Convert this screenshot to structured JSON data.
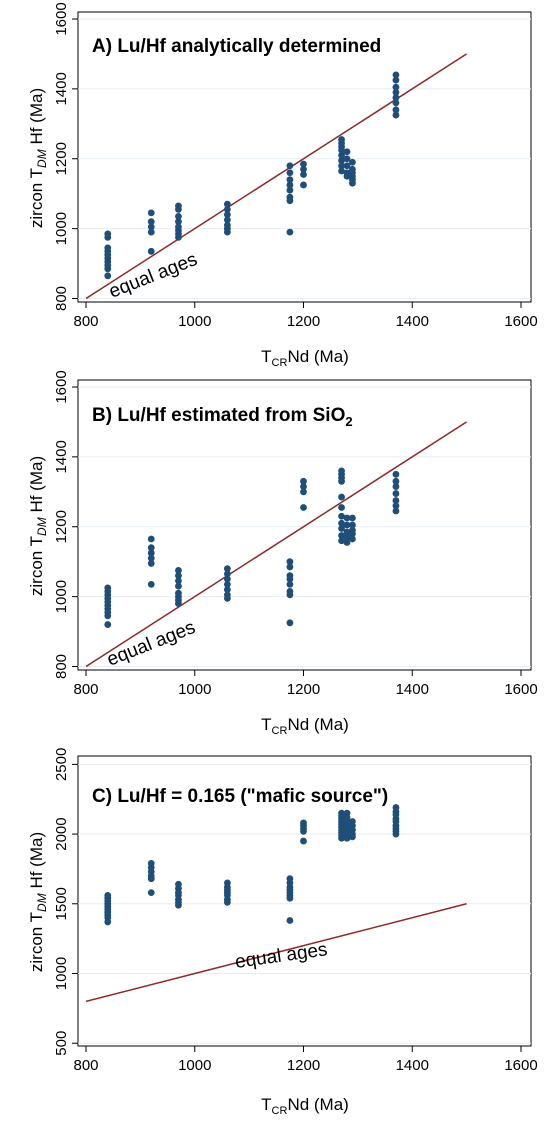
{
  "figure": {
    "axis_common": {
      "xlabel_main": "T",
      "xlabel_sub": "CR",
      "xlabel_rest": "Nd (Ma)",
      "ylabel_main": "zircon T",
      "ylabel_sub": "DM",
      "ylabel_rest": " Hf (Ma)"
    }
  },
  "chart_data": [
    {
      "type": "scatter",
      "panel": "A",
      "title": "A) Lu/Hf analytically determined",
      "xlabel": "TCRNd (Ma)",
      "ylabel": "zircon TDM Hf (Ma)",
      "xlim": [
        800,
        1600
      ],
      "ylim": [
        790,
        1620
      ],
      "xticks": [
        800,
        1000,
        1200,
        1400,
        1600
      ],
      "yticks": [
        800,
        1000,
        1200,
        1400,
        1600
      ],
      "grid": "horizontal",
      "point_color": "#1f4e79",
      "line_color": "#8b2a2a",
      "reference_line": {
        "name": "equal ages",
        "x": [
          800,
          1500
        ],
        "y": [
          800,
          1500
        ]
      },
      "annotation": "equal ages",
      "series": [
        {
          "points": [
            [
              840,
              985
            ],
            [
              840,
              975
            ],
            [
              840,
              945
            ],
            [
              840,
              935
            ],
            [
              840,
              925
            ],
            [
              840,
              915
            ],
            [
              840,
              905
            ],
            [
              840,
              895
            ],
            [
              840,
              885
            ],
            [
              840,
              865
            ],
            [
              920,
              1045
            ],
            [
              920,
              1020
            ],
            [
              920,
              1005
            ],
            [
              920,
              990
            ],
            [
              920,
              935
            ],
            [
              970,
              1065
            ],
            [
              970,
              1055
            ],
            [
              970,
              1035
            ],
            [
              970,
              1020
            ],
            [
              970,
              1005
            ],
            [
              970,
              995
            ],
            [
              970,
              985
            ],
            [
              970,
              975
            ],
            [
              1060,
              1070
            ],
            [
              1060,
              1055
            ],
            [
              1060,
              1040
            ],
            [
              1060,
              1025
            ],
            [
              1060,
              1010
            ],
            [
              1060,
              1000
            ],
            [
              1060,
              990
            ],
            [
              1175,
              1180
            ],
            [
              1175,
              1160
            ],
            [
              1175,
              1140
            ],
            [
              1175,
              1125
            ],
            [
              1175,
              1110
            ],
            [
              1175,
              1090
            ],
            [
              1175,
              1080
            ],
            [
              1175,
              990
            ],
            [
              1200,
              1185
            ],
            [
              1200,
              1170
            ],
            [
              1200,
              1155
            ],
            [
              1200,
              1125
            ],
            [
              1270,
              1255
            ],
            [
              1270,
              1245
            ],
            [
              1270,
              1235
            ],
            [
              1270,
              1225
            ],
            [
              1270,
              1210
            ],
            [
              1270,
              1195
            ],
            [
              1270,
              1180
            ],
            [
              1270,
              1165
            ],
            [
              1280,
              1220
            ],
            [
              1280,
              1200
            ],
            [
              1280,
              1180
            ],
            [
              1280,
              1160
            ],
            [
              1280,
              1150
            ],
            [
              1290,
              1190
            ],
            [
              1290,
              1170
            ],
            [
              1290,
              1160
            ],
            [
              1290,
              1150
            ],
            [
              1290,
              1140
            ],
            [
              1290,
              1130
            ],
            [
              1370,
              1440
            ],
            [
              1370,
              1425
            ],
            [
              1370,
              1405
            ],
            [
              1370,
              1390
            ],
            [
              1370,
              1375
            ],
            [
              1370,
              1360
            ],
            [
              1370,
              1340
            ],
            [
              1370,
              1325
            ]
          ]
        }
      ]
    },
    {
      "type": "scatter",
      "panel": "B",
      "title_main": "B) Lu/Hf estimated from SiO",
      "title_sub": "2",
      "xlabel": "TCRNd (Ma)",
      "ylabel": "zircon TDM Hf (Ma)",
      "xlim": [
        800,
        1600
      ],
      "ylim": [
        790,
        1620
      ],
      "xticks": [
        800,
        1000,
        1200,
        1400,
        1600
      ],
      "yticks": [
        800,
        1000,
        1200,
        1400,
        1600
      ],
      "grid": "horizontal",
      "point_color": "#1f4e79",
      "line_color": "#8b2a2a",
      "reference_line": {
        "name": "equal ages",
        "x": [
          800,
          1500
        ],
        "y": [
          800,
          1500
        ]
      },
      "annotation": "equal ages",
      "series": [
        {
          "points": [
            [
              840,
              1025
            ],
            [
              840,
              1015
            ],
            [
              840,
              1005
            ],
            [
              840,
              995
            ],
            [
              840,
              985
            ],
            [
              840,
              975
            ],
            [
              840,
              965
            ],
            [
              840,
              955
            ],
            [
              840,
              945
            ],
            [
              840,
              920
            ],
            [
              920,
              1165
            ],
            [
              920,
              1140
            ],
            [
              920,
              1125
            ],
            [
              920,
              1110
            ],
            [
              920,
              1095
            ],
            [
              920,
              1035
            ],
            [
              970,
              1075
            ],
            [
              970,
              1060
            ],
            [
              970,
              1045
            ],
            [
              970,
              1030
            ],
            [
              970,
              1010
            ],
            [
              970,
              1000
            ],
            [
              970,
              990
            ],
            [
              970,
              980
            ],
            [
              1060,
              1080
            ],
            [
              1060,
              1065
            ],
            [
              1060,
              1050
            ],
            [
              1060,
              1035
            ],
            [
              1060,
              1020
            ],
            [
              1060,
              1005
            ],
            [
              1060,
              995
            ],
            [
              1175,
              1100
            ],
            [
              1175,
              1085
            ],
            [
              1175,
              1060
            ],
            [
              1175,
              1050
            ],
            [
              1175,
              1035
            ],
            [
              1175,
              1015
            ],
            [
              1175,
              1005
            ],
            [
              1175,
              925
            ],
            [
              1200,
              1330
            ],
            [
              1200,
              1315
            ],
            [
              1200,
              1300
            ],
            [
              1200,
              1255
            ],
            [
              1270,
              1360
            ],
            [
              1270,
              1350
            ],
            [
              1270,
              1340
            ],
            [
              1270,
              1330
            ],
            [
              1270,
              1285
            ],
            [
              1270,
              1255
            ],
            [
              1270,
              1230
            ],
            [
              1270,
              1210
            ],
            [
              1270,
              1195
            ],
            [
              1270,
              1175
            ],
            [
              1270,
              1160
            ],
            [
              1280,
              1225
            ],
            [
              1280,
              1205
            ],
            [
              1280,
              1185
            ],
            [
              1280,
              1170
            ],
            [
              1280,
              1155
            ],
            [
              1290,
              1225
            ],
            [
              1290,
              1205
            ],
            [
              1290,
              1190
            ],
            [
              1290,
              1180
            ],
            [
              1290,
              1165
            ],
            [
              1370,
              1350
            ],
            [
              1370,
              1330
            ],
            [
              1370,
              1315
            ],
            [
              1370,
              1295
            ],
            [
              1370,
              1275
            ],
            [
              1370,
              1260
            ],
            [
              1370,
              1245
            ]
          ]
        }
      ]
    },
    {
      "type": "scatter",
      "panel": "C",
      "title": "C) Lu/Hf = 0.165 (\"mafic source\")",
      "xlabel": "TCRNd (Ma)",
      "ylabel": "zircon TDM Hf (Ma)",
      "xlim": [
        800,
        1600
      ],
      "ylim": [
        480,
        2560
      ],
      "xticks": [
        800,
        1000,
        1200,
        1400,
        1600
      ],
      "yticks": [
        500,
        1000,
        1500,
        2000,
        2500
      ],
      "grid": "horizontal",
      "point_color": "#1f4e79",
      "line_color": "#8b2a2a",
      "reference_line": {
        "name": "equal ages",
        "x": [
          800,
          1500
        ],
        "y": [
          800,
          1500
        ]
      },
      "annotation": "equal ages",
      "series": [
        {
          "points": [
            [
              840,
              1560
            ],
            [
              840,
              1540
            ],
            [
              840,
              1520
            ],
            [
              840,
              1500
            ],
            [
              840,
              1480
            ],
            [
              840,
              1460
            ],
            [
              840,
              1440
            ],
            [
              840,
              1420
            ],
            [
              840,
              1400
            ],
            [
              840,
              1370
            ],
            [
              920,
              1790
            ],
            [
              920,
              1760
            ],
            [
              920,
              1730
            ],
            [
              920,
              1700
            ],
            [
              920,
              1680
            ],
            [
              920,
              1580
            ],
            [
              970,
              1640
            ],
            [
              970,
              1610
            ],
            [
              970,
              1580
            ],
            [
              970,
              1560
            ],
            [
              970,
              1530
            ],
            [
              970,
              1510
            ],
            [
              970,
              1490
            ],
            [
              1060,
              1650
            ],
            [
              1060,
              1620
            ],
            [
              1060,
              1600
            ],
            [
              1060,
              1580
            ],
            [
              1060,
              1560
            ],
            [
              1060,
              1530
            ],
            [
              1060,
              1510
            ],
            [
              1175,
              1680
            ],
            [
              1175,
              1650
            ],
            [
              1175,
              1620
            ],
            [
              1175,
              1600
            ],
            [
              1175,
              1580
            ],
            [
              1175,
              1560
            ],
            [
              1175,
              1540
            ],
            [
              1175,
              1380
            ],
            [
              1200,
              2080
            ],
            [
              1200,
              2060
            ],
            [
              1200,
              2040
            ],
            [
              1200,
              2020
            ],
            [
              1200,
              1950
            ],
            [
              1270,
              2150
            ],
            [
              1270,
              2130
            ],
            [
              1270,
              2110
            ],
            [
              1270,
              2090
            ],
            [
              1270,
              2070
            ],
            [
              1270,
              2050
            ],
            [
              1270,
              2030
            ],
            [
              1270,
              2010
            ],
            [
              1270,
              1990
            ],
            [
              1270,
              1970
            ],
            [
              1280,
              2150
            ],
            [
              1280,
              2120
            ],
            [
              1280,
              2090
            ],
            [
              1280,
              2060
            ],
            [
              1280,
              2030
            ],
            [
              1280,
              2000
            ],
            [
              1280,
              1970
            ],
            [
              1290,
              2090
            ],
            [
              1290,
              2060
            ],
            [
              1290,
              2030
            ],
            [
              1290,
              2000
            ],
            [
              1290,
              1980
            ],
            [
              1370,
              2190
            ],
            [
              1370,
              2160
            ],
            [
              1370,
              2140
            ],
            [
              1370,
              2110
            ],
            [
              1370,
              2090
            ],
            [
              1370,
              2060
            ],
            [
              1370,
              2040
            ],
            [
              1370,
              2020
            ],
            [
              1370,
              2000
            ]
          ]
        }
      ]
    }
  ]
}
